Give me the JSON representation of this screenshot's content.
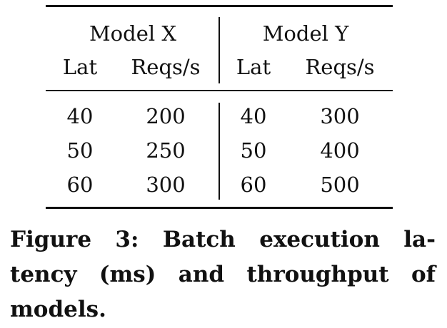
{
  "table": {
    "groups": [
      "Model X",
      "Model Y"
    ],
    "subheaders": [
      "Lat",
      "Reqs/s",
      "Lat",
      "Reqs/s"
    ],
    "rows": [
      [
        "40",
        "200",
        "40",
        "300"
      ],
      [
        "50",
        "250",
        "50",
        "400"
      ],
      [
        "60",
        "300",
        "60",
        "500"
      ]
    ]
  },
  "caption": "Figure 3: Batch execution la-tency (ms) and throughput of models."
}
